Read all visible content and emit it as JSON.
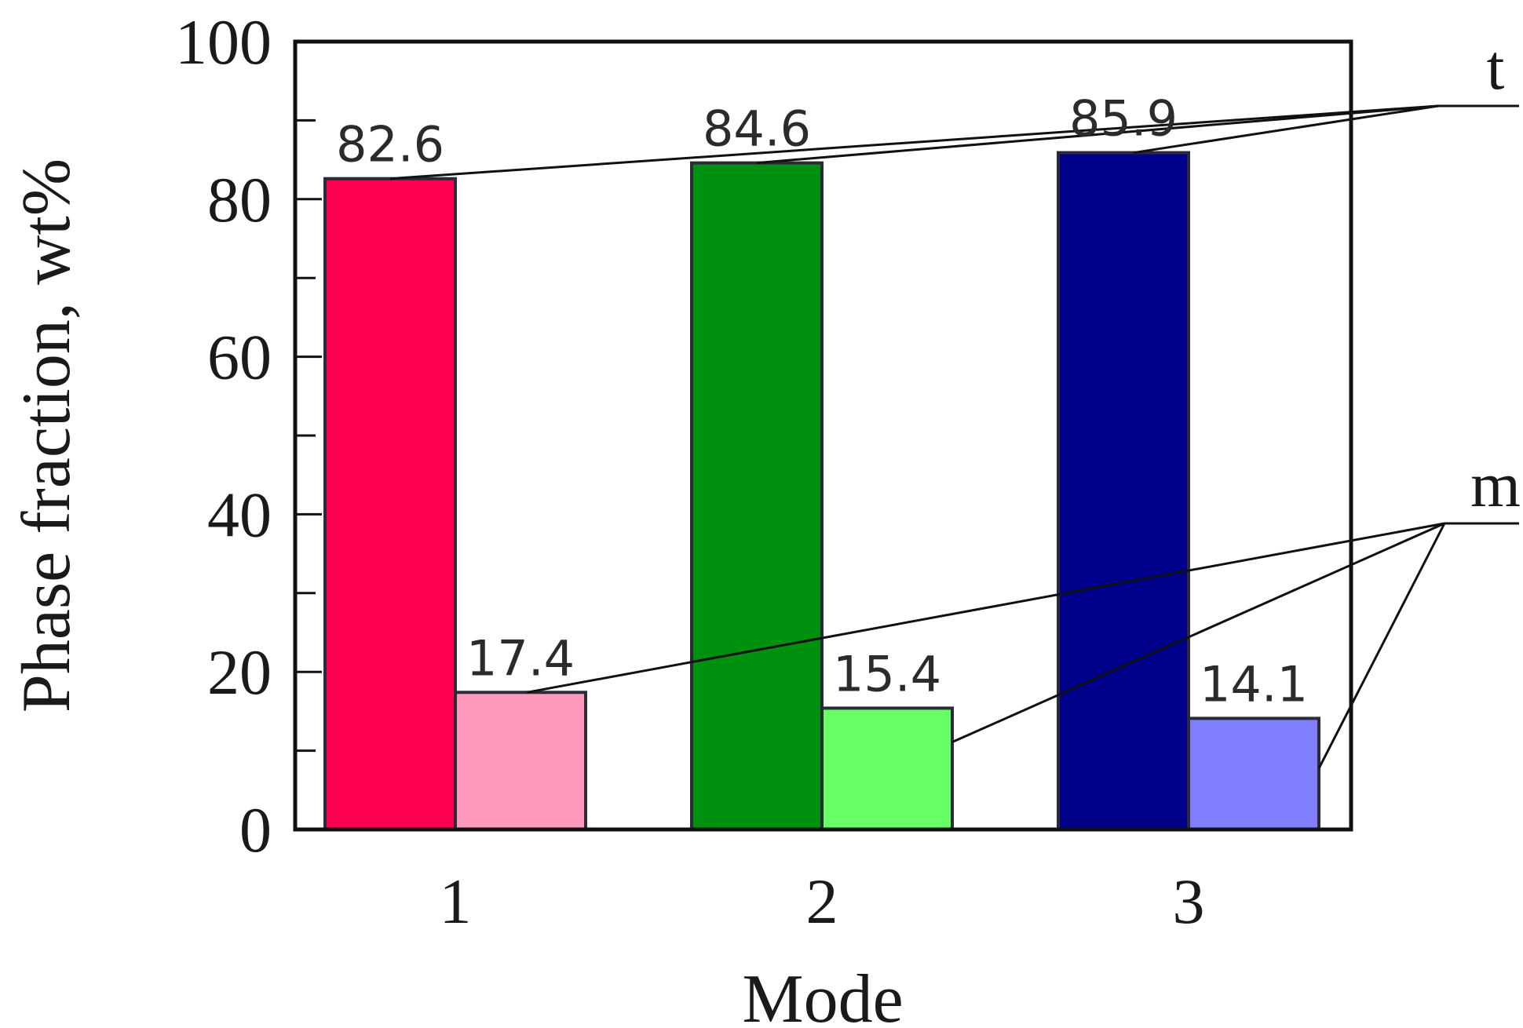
{
  "chart_data": {
    "type": "bar",
    "xlabel": "Mode",
    "ylabel": "Phase fraction, wt%",
    "ylim": [
      0,
      100
    ],
    "yticks": [
      "0",
      "20",
      "40",
      "60",
      "80",
      "100"
    ],
    "categories": [
      "1",
      "2",
      "3"
    ],
    "series": [
      {
        "name": "t",
        "values": [
          82.6,
          84.6,
          85.9
        ],
        "labels": [
          "82.6",
          "84.6",
          "85.9"
        ]
      },
      {
        "name": "m",
        "values": [
          17.4,
          15.4,
          14.1
        ],
        "labels": [
          "17.4",
          "15.4",
          "14.1"
        ]
      }
    ],
    "bar_colors": [
      [
        "#ff0050",
        "#ff99bb"
      ],
      [
        "#009010",
        "#66ff66"
      ],
      [
        "#00008b",
        "#8080ff"
      ]
    ],
    "grid": false,
    "legend_placement": "right"
  }
}
